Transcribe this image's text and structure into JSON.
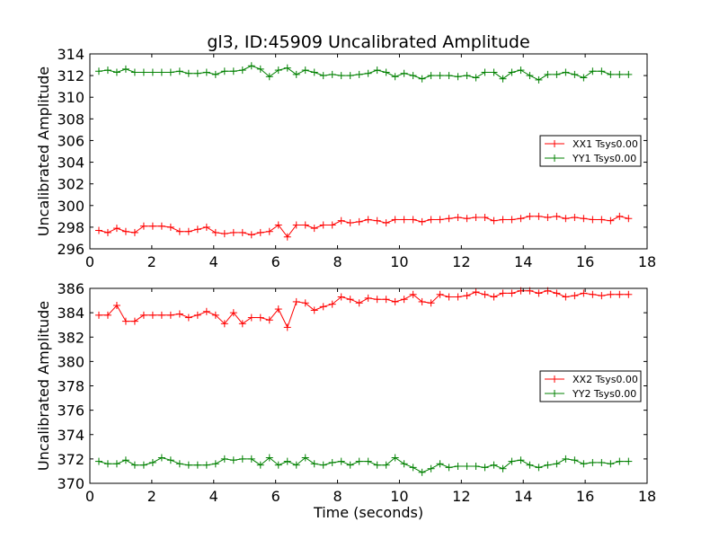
{
  "figure": {
    "title": "gl3, ID:45909 Uncalibrated Amplitude",
    "xlabel": "Time (seconds)"
  },
  "chart_data": [
    {
      "type": "line",
      "ylabel": "Uncalibrated Amplitude",
      "xlim": [
        0,
        18
      ],
      "ylim": [
        296,
        314
      ],
      "xticks": [
        "0",
        "2",
        "4",
        "6",
        "8",
        "10",
        "12",
        "14",
        "16",
        "18"
      ],
      "yticks": [
        "296",
        "298",
        "300",
        "302",
        "304",
        "306",
        "308",
        "310",
        "312",
        "314"
      ],
      "x": [
        0.29,
        0.58,
        0.87,
        1.16,
        1.45,
        1.74,
        2.03,
        2.32,
        2.61,
        2.9,
        3.19,
        3.48,
        3.77,
        4.06,
        4.35,
        4.64,
        4.93,
        5.22,
        5.51,
        5.8,
        6.09,
        6.38,
        6.67,
        6.96,
        7.25,
        7.54,
        7.83,
        8.12,
        8.41,
        8.7,
        8.99,
        9.28,
        9.57,
        9.86,
        10.15,
        10.44,
        10.73,
        11.02,
        11.31,
        11.6,
        11.89,
        12.18,
        12.47,
        12.76,
        13.05,
        13.34,
        13.63,
        13.92,
        14.21,
        14.5,
        14.79,
        15.08,
        15.37,
        15.66,
        15.95,
        16.24,
        16.53,
        16.82,
        17.11,
        17.4
      ],
      "series": [
        {
          "name": "XX1 Tsys0.00",
          "color": "#ff0000",
          "values": [
            297.7,
            297.5,
            297.9,
            297.6,
            297.5,
            298.1,
            298.1,
            298.1,
            298.0,
            297.6,
            297.6,
            297.8,
            298.0,
            297.5,
            297.4,
            297.5,
            297.5,
            297.3,
            297.5,
            297.6,
            298.2,
            297.1,
            298.2,
            298.2,
            297.9,
            298.2,
            298.2,
            298.6,
            298.4,
            298.5,
            298.7,
            298.6,
            298.4,
            298.7,
            298.7,
            298.7,
            298.5,
            298.7,
            298.7,
            298.8,
            298.9,
            298.8,
            298.9,
            298.9,
            298.6,
            298.7,
            298.7,
            298.8,
            299.0,
            299.0,
            298.9,
            299.0,
            298.8,
            298.9,
            298.8,
            298.7,
            298.7,
            298.6,
            299.0,
            298.8
          ]
        },
        {
          "name": "YY1 Tsys0.00",
          "color": "#008000",
          "values": [
            312.4,
            312.5,
            312.3,
            312.6,
            312.3,
            312.3,
            312.3,
            312.3,
            312.3,
            312.4,
            312.2,
            312.2,
            312.3,
            312.1,
            312.4,
            312.4,
            312.5,
            312.9,
            312.6,
            311.9,
            312.5,
            312.7,
            312.1,
            312.5,
            312.3,
            312.0,
            312.1,
            312.0,
            312.0,
            312.1,
            312.2,
            312.5,
            312.3,
            311.9,
            312.2,
            312.0,
            311.7,
            312.0,
            312.0,
            312.0,
            311.9,
            312.0,
            311.8,
            312.3,
            312.3,
            311.7,
            312.3,
            312.5,
            312.0,
            311.6,
            312.1,
            312.1,
            312.3,
            312.1,
            311.8,
            312.4,
            312.4,
            312.1,
            312.1,
            312.1
          ]
        }
      ]
    },
    {
      "type": "line",
      "ylabel": "Uncalibrated Amplitude",
      "xlim": [
        0,
        18
      ],
      "ylim": [
        370,
        386
      ],
      "xticks": [
        "0",
        "2",
        "4",
        "6",
        "8",
        "10",
        "12",
        "14",
        "16",
        "18"
      ],
      "yticks": [
        "370",
        "372",
        "374",
        "376",
        "378",
        "380",
        "382",
        "384",
        "386"
      ],
      "x": [
        0.29,
        0.58,
        0.87,
        1.16,
        1.45,
        1.74,
        2.03,
        2.32,
        2.61,
        2.9,
        3.19,
        3.48,
        3.77,
        4.06,
        4.35,
        4.64,
        4.93,
        5.22,
        5.51,
        5.8,
        6.09,
        6.38,
        6.67,
        6.96,
        7.25,
        7.54,
        7.83,
        8.12,
        8.41,
        8.7,
        8.99,
        9.28,
        9.57,
        9.86,
        10.15,
        10.44,
        10.73,
        11.02,
        11.31,
        11.6,
        11.89,
        12.18,
        12.47,
        12.76,
        13.05,
        13.34,
        13.63,
        13.92,
        14.21,
        14.5,
        14.79,
        15.08,
        15.37,
        15.66,
        15.95,
        16.24,
        16.53,
        16.82,
        17.11,
        17.4
      ],
      "series": [
        {
          "name": "XX2 Tsys0.00",
          "color": "#ff0000",
          "values": [
            383.8,
            383.8,
            384.6,
            383.3,
            383.3,
            383.8,
            383.8,
            383.8,
            383.8,
            383.9,
            383.6,
            383.8,
            384.1,
            383.8,
            383.1,
            384.0,
            383.1,
            383.6,
            383.6,
            383.4,
            384.3,
            382.8,
            384.9,
            384.8,
            384.2,
            384.5,
            384.7,
            385.3,
            385.1,
            384.8,
            385.2,
            385.1,
            385.1,
            384.9,
            385.1,
            385.5,
            384.9,
            384.8,
            385.5,
            385.3,
            385.3,
            385.4,
            385.7,
            385.5,
            385.3,
            385.6,
            385.6,
            385.8,
            385.8,
            385.6,
            385.8,
            385.6,
            385.3,
            385.4,
            385.6,
            385.5,
            385.4,
            385.5,
            385.5,
            385.5
          ]
        },
        {
          "name": "YY2 Tsys0.00",
          "color": "#008000",
          "values": [
            371.8,
            371.6,
            371.6,
            371.9,
            371.5,
            371.5,
            371.7,
            372.1,
            371.9,
            371.6,
            371.5,
            371.5,
            371.5,
            371.6,
            372.0,
            371.9,
            372.0,
            372.0,
            371.5,
            372.1,
            371.5,
            371.8,
            371.5,
            372.1,
            371.6,
            371.5,
            371.7,
            371.8,
            371.5,
            371.8,
            371.8,
            371.5,
            371.5,
            372.1,
            371.6,
            371.3,
            370.9,
            371.2,
            371.6,
            371.3,
            371.4,
            371.4,
            371.4,
            371.3,
            371.5,
            371.2,
            371.8,
            371.9,
            371.5,
            371.3,
            371.5,
            371.6,
            372.0,
            371.9,
            371.6,
            371.7,
            371.7,
            371.6,
            371.8,
            371.8
          ]
        }
      ]
    }
  ]
}
